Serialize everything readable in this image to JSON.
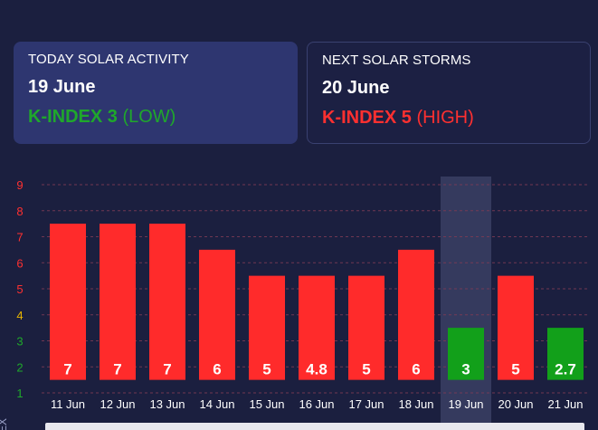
{
  "today": {
    "heading": "TODAY SOLAR ACTIVITY",
    "date": "19 June",
    "kindex_label": "K-INDEX 3",
    "level": "(LOW)",
    "color": "#1fa82b"
  },
  "next": {
    "heading": "NEXT SOLAR STORMS",
    "date": "20 June",
    "kindex_label": "K-INDEX 5",
    "level": "(HIGH)",
    "color": "#ff3030"
  },
  "chart_data": {
    "type": "bar",
    "categories": [
      "11 Jun",
      "12 Jun",
      "13 Jun",
      "14 Jun",
      "15 Jun",
      "16 Jun",
      "17 Jun",
      "18 Jun",
      "19 Jun",
      "20 Jun",
      "21 Jun"
    ],
    "values": [
      7,
      7,
      7,
      6,
      5,
      4.8,
      5,
      6,
      3,
      5,
      2.7
    ],
    "bar_tops": [
      7.5,
      7.5,
      7.5,
      6.5,
      5.5,
      5.5,
      5.5,
      6.5,
      3.5,
      5.5,
      3.5
    ],
    "value_labels": [
      "7",
      "7",
      "7",
      "6",
      "5",
      "4.8",
      "5",
      "6",
      "3",
      "5",
      "2.7"
    ],
    "bar_colors": [
      "#ff2b2b",
      "#ff2b2b",
      "#ff2b2b",
      "#ff2b2b",
      "#ff2b2b",
      "#ff2b2b",
      "#ff2b2b",
      "#ff2b2b",
      "#12a01a",
      "#ff2b2b",
      "#12a01a"
    ],
    "highlight_category": "19 Jun",
    "y_ticks": [
      1,
      2,
      3,
      4,
      5,
      6,
      7,
      8,
      9
    ],
    "y_tick_colors": [
      "#1fa82b",
      "#1fa82b",
      "#1fa82b",
      "#e8b400",
      "#ff3030",
      "#ff3030",
      "#ff3030",
      "#ff3030",
      "#ff3030"
    ],
    "ylim": [
      1,
      9.5
    ],
    "ylabel": "EX",
    "grid": true
  }
}
